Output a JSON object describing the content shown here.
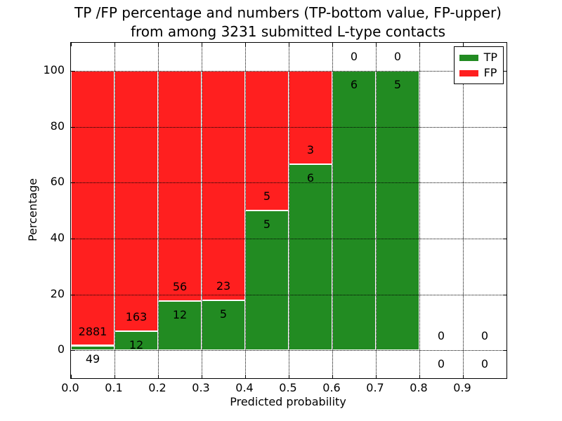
{
  "chart_data": {
    "type": "bar",
    "stacked": true,
    "title": "TP /FP percentage and numbers (TP-bottom value, FP-upper) from among 3231 submitted L-type contacts",
    "title_lines": [
      "TP /FP percentage and numbers (TP-bottom value, FP-upper)",
      "from among 3231 submitted L-type contacts"
    ],
    "xlabel": "Predicted probability",
    "ylabel": "Percentage",
    "xlim": [
      0.0,
      1.0
    ],
    "ylim": [
      -10,
      110
    ],
    "bin_width": 0.1,
    "x_tick_labels": [
      "0.0",
      "0.1",
      "0.2",
      "0.3",
      "0.4",
      "0.5",
      "0.6",
      "0.7",
      "0.8",
      "0.9"
    ],
    "y_ticks": [
      0,
      20,
      40,
      60,
      80,
      100
    ],
    "grid": "dotted black, both axes, drawn above bars",
    "legend_position": "upper right",
    "legend": [
      {
        "label": "TP",
        "color": "#228b22"
      },
      {
        "label": "FP",
        "color": "#ff1f1f"
      }
    ],
    "bins": [
      {
        "x_start": 0.0,
        "tp": 49,
        "fp": 2881,
        "tp_pct": 1.67,
        "fp_pct": 98.33
      },
      {
        "x_start": 0.1,
        "tp": 12,
        "fp": 163,
        "tp_pct": 6.86,
        "fp_pct": 93.14
      },
      {
        "x_start": 0.2,
        "tp": 12,
        "fp": 56,
        "tp_pct": 17.65,
        "fp_pct": 82.35
      },
      {
        "x_start": 0.3,
        "tp": 5,
        "fp": 23,
        "tp_pct": 17.86,
        "fp_pct": 82.14
      },
      {
        "x_start": 0.4,
        "tp": 5,
        "fp": 5,
        "tp_pct": 50.0,
        "fp_pct": 50.0
      },
      {
        "x_start": 0.5,
        "tp": 6,
        "fp": 3,
        "tp_pct": 66.67,
        "fp_pct": 33.33
      },
      {
        "x_start": 0.6,
        "tp": 6,
        "fp": 0,
        "tp_pct": 100.0,
        "fp_pct": 0.0
      },
      {
        "x_start": 0.7,
        "tp": 5,
        "fp": 0,
        "tp_pct": 100.0,
        "fp_pct": 0.0
      },
      {
        "x_start": 0.8,
        "tp": 0,
        "fp": 0,
        "tp_pct": 0.0,
        "fp_pct": 0.0
      },
      {
        "x_start": 0.9,
        "tp": 0,
        "fp": 0,
        "tp_pct": 0.0,
        "fp_pct": 0.0
      }
    ]
  }
}
